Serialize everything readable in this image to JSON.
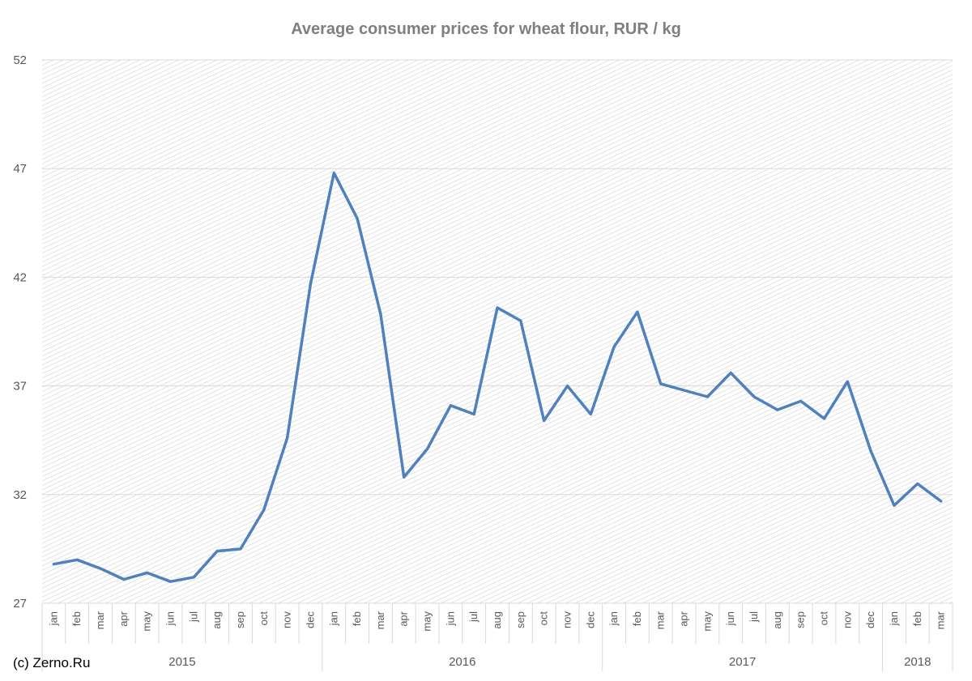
{
  "chart_data": {
    "type": "line",
    "title": "Average consumer prices for wheat flour, RUR / kg",
    "xlabel": "",
    "ylabel": "",
    "ylim": [
      27,
      52
    ],
    "yticks": [
      27,
      32,
      37,
      42,
      47,
      52
    ],
    "grid": true,
    "legend": "none",
    "line_color": "#4f81bd",
    "years": [
      {
        "label": "2015",
        "months": 12
      },
      {
        "label": "2016",
        "months": 12
      },
      {
        "label": "2017",
        "months": 12
      },
      {
        "label": "2018",
        "months": 3
      }
    ],
    "categories": [
      "jan",
      "feb",
      "mar",
      "apr",
      "may",
      "jun",
      "jul",
      "aug",
      "sep",
      "oct",
      "nov",
      "dec",
      "jan",
      "feb",
      "mar",
      "apr",
      "may",
      "jun",
      "jul",
      "aug",
      "sep",
      "oct",
      "nov",
      "dec",
      "jan",
      "feb",
      "mar",
      "apr",
      "may",
      "jun",
      "jul",
      "aug",
      "sep",
      "oct",
      "nov",
      "dec",
      "jan",
      "feb",
      "mar"
    ],
    "series": [
      {
        "values": [
          28.8,
          29.0,
          28.6,
          28.1,
          28.4,
          28.0,
          28.2,
          29.4,
          29.5,
          31.3,
          34.6,
          41.7,
          46.8,
          44.7,
          40.3,
          32.8,
          34.1,
          36.1,
          35.7,
          40.6,
          40.0,
          35.4,
          37.0,
          35.7,
          38.8,
          40.4,
          37.1,
          36.8,
          36.5,
          37.6,
          36.5,
          35.9,
          36.3,
          35.5,
          37.2,
          34.0,
          31.5,
          32.5,
          31.7
        ]
      }
    ]
  },
  "footer": {
    "credit": "(c) Zerno.Ru"
  }
}
